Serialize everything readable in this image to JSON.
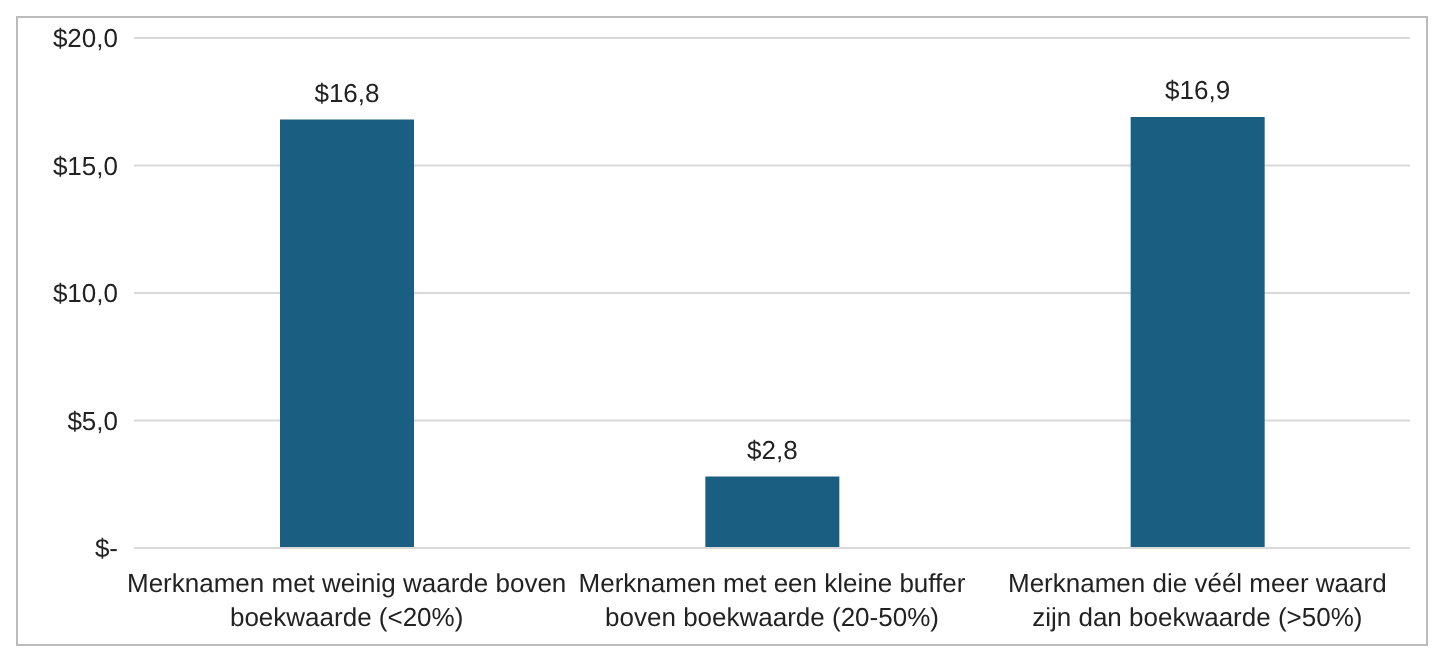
{
  "chart_data": {
    "type": "bar",
    "categories": [
      "Merknamen met weinig waarde boven boekwaarde (<20%)",
      "Merknamen met een kleine buffer boven boekwaarde (20-50%)",
      "Merknamen die véél meer waard zijn dan boekwaarde (>50%)"
    ],
    "values": [
      16.8,
      2.8,
      16.9
    ],
    "value_labels": [
      "$16,8",
      "$2,8",
      "$16,9"
    ],
    "color": "#1a5f82",
    "ylim": [
      0,
      20
    ],
    "yticks": [
      {
        "value": 0,
        "label": "$-"
      },
      {
        "value": 5,
        "label": "$5,0"
      },
      {
        "value": 10,
        "label": "$10,0"
      },
      {
        "value": 15,
        "label": "$15,0"
      },
      {
        "value": 20,
        "label": "$20,0"
      }
    ],
    "grid": "y"
  }
}
